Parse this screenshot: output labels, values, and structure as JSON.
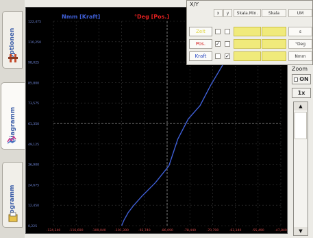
{
  "tabs": [
    {
      "label": "Optionen",
      "icon": "options-icon"
    },
    {
      "label": "Diagramm",
      "icon": "chart-icon"
    },
    {
      "label": "Programm",
      "icon": "program-icon"
    }
  ],
  "chart": {
    "series1_label": "Nmm [Kraft]",
    "series2_label": "°Deg [Pos.]",
    "series1_color": "#3f5fd6",
    "series2_color": "#e02020",
    "y_ticks": [
      "122,475",
      "110,250",
      "98,025",
      "85,800",
      "73,575",
      "61,350",
      "49,125",
      "36,900",
      "24,675",
      "12,450",
      "0,225"
    ],
    "x_ticks": [
      "-124,340",
      "-116,690",
      "-109,040",
      "-101,390",
      "-93,740",
      "-86,090",
      "-78,440",
      "-70,790",
      "-63,140",
      "-55,490",
      "-47,840"
    ]
  },
  "chart_data": {
    "type": "line",
    "title": "",
    "xlabel": "",
    "ylabel": "",
    "series": [
      {
        "name": "Nmm [Kraft]",
        "x": [
          -101.4,
          -100.6,
          -99.2,
          -97.5,
          -94.5,
          -90.0,
          -85.5,
          -82.5,
          -79.0,
          -75.0,
          -71.5,
          -67.5,
          -64.0
        ],
        "y": [
          0.225,
          3.5,
          8.0,
          12.0,
          18.0,
          26.0,
          36.0,
          52.0,
          64.0,
          72.0,
          84.0,
          96.0,
          122.475
        ]
      }
    ]
  },
  "xy_panel": {
    "title": "X/Y",
    "headers": {
      "x": "x",
      "y": "y",
      "skala_min": "Skala.Min.",
      "skala": "Skala",
      "um": "UM"
    },
    "rows": [
      {
        "label": "Zeit",
        "label_color": "#e0d640",
        "x_checked": false,
        "y_checked": false,
        "unit": "s"
      },
      {
        "label": "Pos.",
        "label_color": "#d42020",
        "x_checked": true,
        "y_checked": false,
        "unit": "°Deg"
      },
      {
        "label": "Kraft",
        "label_color": "#2040c0",
        "x_checked": false,
        "y_checked": true,
        "unit": "Nmm"
      }
    ]
  },
  "zoom": {
    "label": "Zoom",
    "toggle": "ON",
    "level": "1x"
  }
}
